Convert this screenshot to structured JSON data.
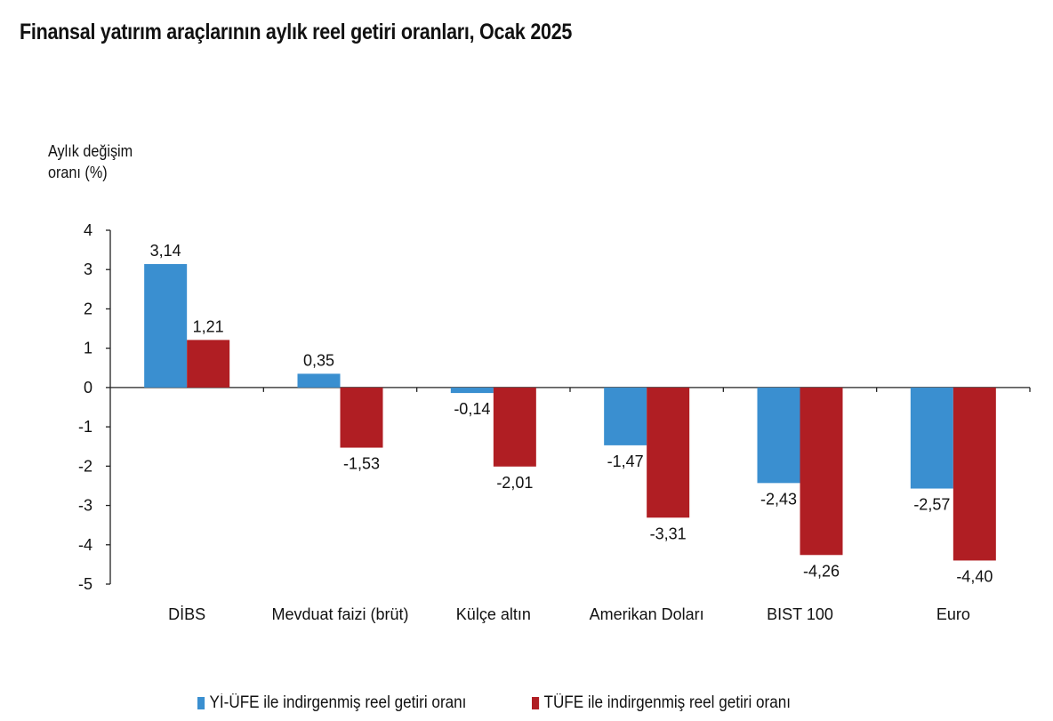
{
  "chart_data": {
    "type": "bar",
    "title": "Finansal yatırım araçlarının aylık reel getiri oranları, Ocak 2025",
    "ylabel_lines": [
      "Aylık değişim",
      "oranı (%)"
    ],
    "xlabel": "",
    "ylim": [
      -5,
      4
    ],
    "yticks": [
      4,
      3,
      2,
      1,
      0,
      -1,
      -2,
      -3,
      -4,
      -5
    ],
    "ytick_labels": [
      "4",
      "3",
      "2",
      "1",
      "0",
      "-1",
      "-2",
      "-3",
      "-4",
      "-5"
    ],
    "grid": false,
    "legend_position": "bottom",
    "categories": [
      "DİBS",
      "Mevduat faizi (brüt)",
      "Külçe altın",
      "Amerikan Doları",
      "BIST 100",
      "Euro"
    ],
    "series": [
      {
        "name": "Yİ-ÜFE ile indirgenmiş reel getiri oranı",
        "color": "#3a8fd0",
        "values": [
          3.14,
          0.35,
          -0.14,
          -1.47,
          -2.43,
          -2.57
        ],
        "labels": [
          "3,14",
          "0,35",
          "-0,14",
          "-1,47",
          "-2,43",
          "-2,57"
        ]
      },
      {
        "name": "TÜFE ile indirgenmiş reel getiri oranı",
        "color": "#b01e23",
        "values": [
          1.21,
          -1.53,
          -2.01,
          -3.31,
          -4.26,
          -4.4
        ],
        "labels": [
          "1,21",
          "-1,53",
          "-2,01",
          "-3,31",
          "-4,26",
          "-4,40"
        ]
      }
    ]
  }
}
